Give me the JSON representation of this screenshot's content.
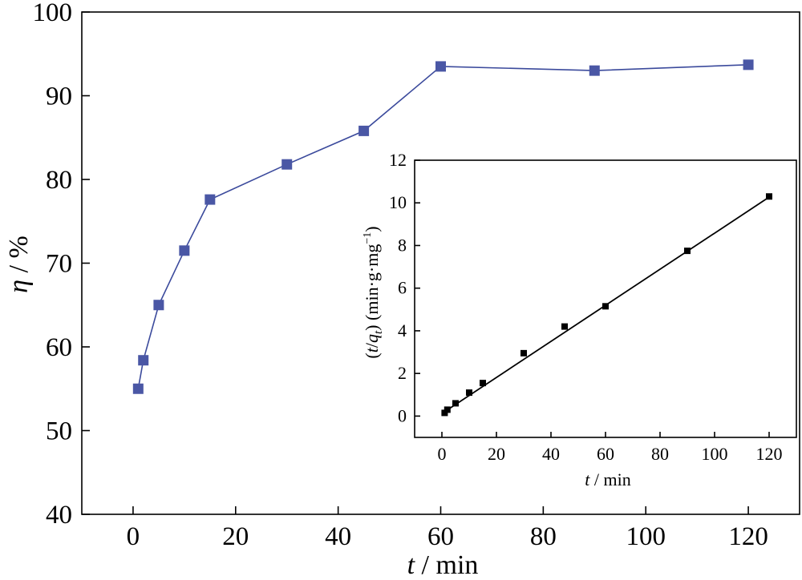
{
  "chart_data": [
    {
      "type": "line",
      "title": "",
      "xlabel_italic": "t",
      "xlabel_rest": " / min",
      "ylabel_italic": "η",
      "ylabel_rest": " / %",
      "xlim": [
        -10,
        130
      ],
      "ylim": [
        40,
        100
      ],
      "xticks": [
        0,
        20,
        40,
        60,
        80,
        100,
        120
      ],
      "yticks": [
        40,
        50,
        60,
        70,
        80,
        90,
        100
      ],
      "grid": false,
      "colors": {
        "line": "#3b4a9c",
        "marker": "#4a57a5"
      },
      "series": [
        {
          "x": [
            1,
            2,
            5,
            10,
            15,
            30,
            45,
            60,
            90,
            120
          ],
          "y": [
            55.0,
            58.4,
            65.0,
            71.5,
            77.6,
            81.8,
            85.8,
            93.5,
            93.0,
            93.7
          ]
        }
      ]
    },
    {
      "type": "scatter",
      "title": "",
      "xlabel_italic": "t",
      "xlabel_rest": " / min",
      "ylabel": "(t/qt) (min·g·mg⁻¹)",
      "xlim": [
        -10,
        130
      ],
      "ylim": [
        -1,
        12
      ],
      "xticks": [
        0,
        20,
        40,
        60,
        80,
        100,
        120
      ],
      "yticks": [
        0,
        2,
        4,
        6,
        8,
        10,
        12
      ],
      "grid": false,
      "colors": {
        "line": "#000000",
        "marker": "#000000"
      },
      "series": [
        {
          "x": [
            1,
            2,
            5,
            10,
            15,
            30,
            45,
            60,
            90,
            120
          ],
          "y": [
            0.15,
            0.3,
            0.6,
            1.1,
            1.55,
            2.95,
            4.2,
            5.15,
            7.75,
            10.3
          ]
        }
      ],
      "fit_line": {
        "x": [
          0,
          120
        ],
        "y": [
          0.12,
          10.27
        ]
      }
    }
  ]
}
